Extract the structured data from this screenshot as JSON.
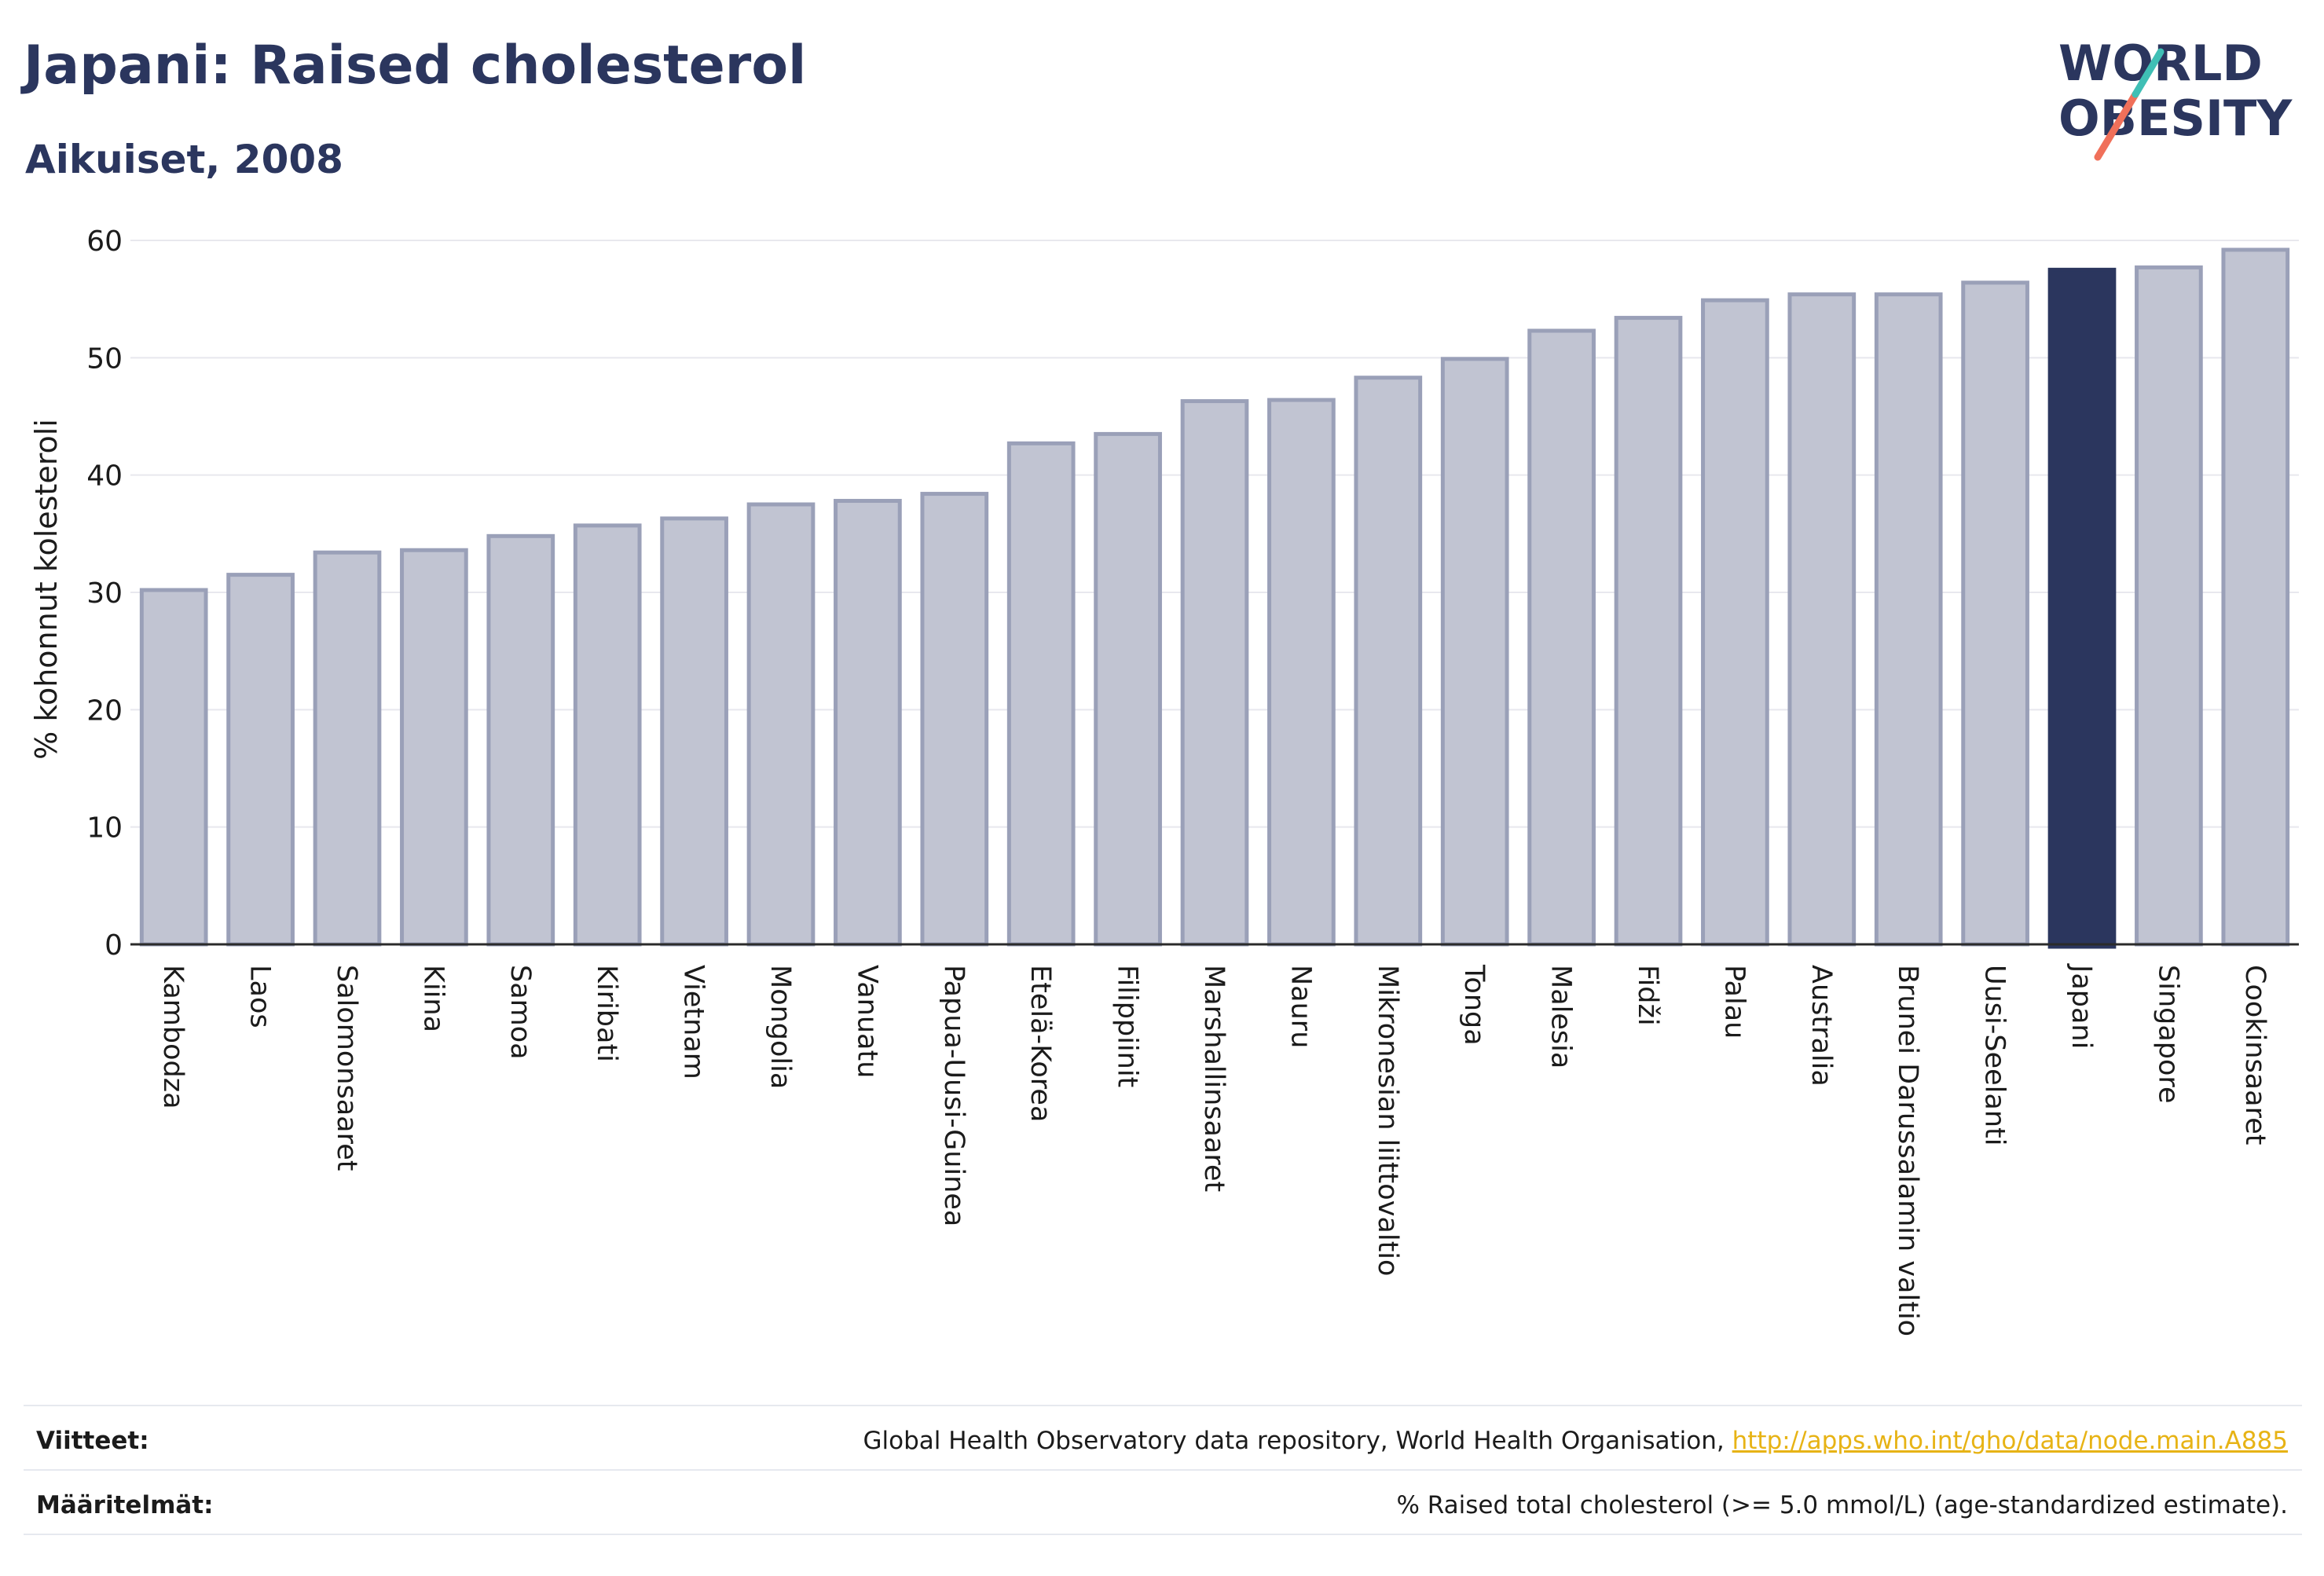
{
  "header": {
    "title": "Japani: Raised cholesterol",
    "subtitle": "Aikuiset, 2008"
  },
  "logo": {
    "line1": "WORLD",
    "line2": "OBESITY"
  },
  "colors": {
    "bar": "#c1c4d2",
    "bar_border": "#9aa0b8",
    "highlight": "#2b365e",
    "text": "#2b365e",
    "grid": "#e8e8ee",
    "link": "#e7b315",
    "logo_teal": "#3fbfb5",
    "logo_coral": "#f0705a"
  },
  "chart_data": {
    "type": "bar",
    "ylabel": "% kohonnut kolesteroli",
    "ylim": [
      0,
      60
    ],
    "yticks": [
      "0",
      "10",
      "20",
      "30",
      "40",
      "50",
      "60"
    ],
    "grid": true,
    "highlight_category": "Japani",
    "categories": [
      "Kambodza",
      "Laos",
      "Salomonsaaret",
      "Kiina",
      "Samoa",
      "Kiribati",
      "Vietnam",
      "Mongolia",
      "Vanuatu",
      "Papua-Uusi-Guinea",
      "Etelä-Korea",
      "Filippiinit",
      "Marshallinsaaret",
      "Nauru",
      "Mikronesian liittovaltio",
      "Tonga",
      "Malesia",
      "Fidži",
      "Palau",
      "Australia",
      "Brunei Darussalamin valtio",
      "Uusi-Seelanti",
      "Japani",
      "Singapore",
      "Cookinsaaret"
    ],
    "values": [
      30.2,
      31.5,
      33.4,
      33.6,
      34.8,
      35.7,
      36.3,
      37.5,
      37.8,
      38.4,
      42.7,
      43.5,
      46.3,
      46.4,
      48.3,
      49.9,
      52.3,
      53.4,
      54.9,
      55.4,
      55.4,
      56.4,
      57.5,
      57.7,
      59.2
    ]
  },
  "footer": {
    "sources_label": "Viitteet:",
    "sources_text": "Global Health Observatory data repository, World Health Organisation, ",
    "sources_link": "http://apps.who.int/gho/data/node.main.A885",
    "definitions_label": "Määritelmät:",
    "definitions_text": "% Raised total cholesterol (>= 5.0 mmol/L) (age-standardized estimate)."
  }
}
